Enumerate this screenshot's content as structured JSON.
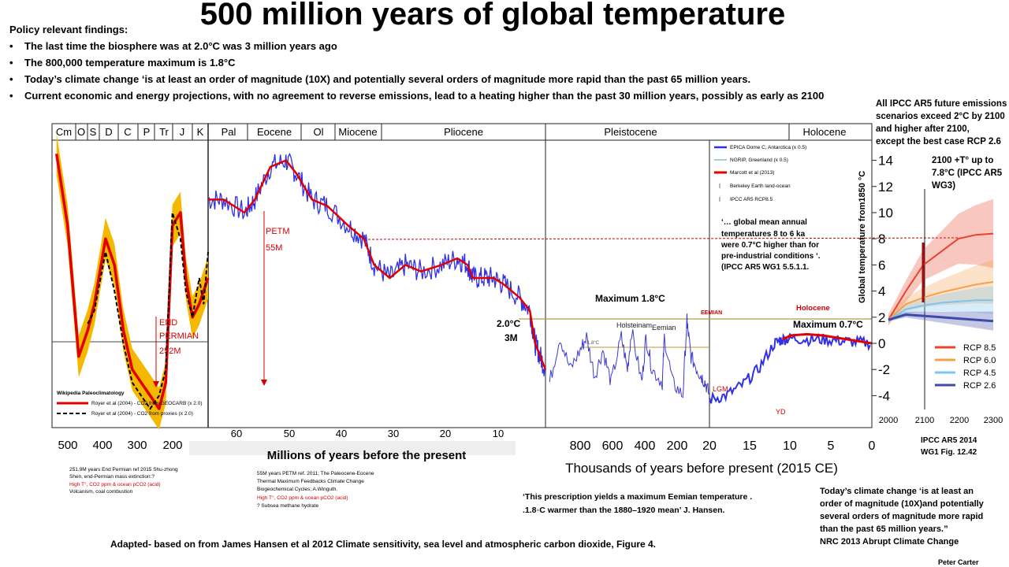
{
  "title": "500 million years of global temperature",
  "policy": {
    "heading": "Policy relevant  findings:",
    "findings": [
      "The last time the biosphere was at 2.0°C was 3 million years ago",
      "The 800,000 temperature maximum is 1.8°C",
      "Today’s climate change ‘is at least an order of magnitude (10X) and potentially several orders  of magnitude more rapid than the past 65 million years.",
      "Current economic and energy projections, with no agreement to reverse emissions, lead to a heating higher than the past 30 million years, possibly as early as 2100"
    ]
  },
  "right_note": {
    "lines": [
      "All IPCC AR5 future emissions",
      "scenarios   exceed 2°C by 2100",
      "and higher after 2100,",
      "except the best case RCP 2.6"
    ]
  },
  "projection_note": {
    "lines": [
      "2100 +T°  up to",
      "7.8°C (IPCC AR5",
      "WG3)"
    ]
  },
  "colors": {
    "hansen_blue": "#3030e6",
    "red": "#e00000",
    "gold": "#f5b800",
    "olive": "#b89a3a",
    "rcp85": "#e8442a",
    "rcp60": "#f4a04a",
    "rcp45": "#7cc4ee",
    "rcp26": "#3c4aa8"
  },
  "chart_data": [
    {
      "type": "line",
      "title": "",
      "ylabel": "Global temperature from1850 °C",
      "ylim": [
        -5,
        15
      ],
      "yticks": [
        "14",
        "12",
        "10",
        "8",
        "6",
        "4",
        "2",
        "0",
        "-2",
        "-4"
      ],
      "periods": [
        "Cm",
        "O",
        "S",
        "D",
        "C",
        "P",
        "Tr",
        "J",
        "K",
        "Pal",
        "Eocene",
        "Ol",
        "Miocene",
        "Pliocene",
        "Pleistocene",
        "Holocene"
      ],
      "panels": [
        {
          "name": "Paleozoic-Mesozoic",
          "x_ticks": [
            "500",
            "400",
            "300",
            "200"
          ],
          "xlim_ma": [
            540,
            190
          ],
          "series": [
            {
              "name": "Royer et al (2004) - CO2 from GEOCARB (x 2.0)",
              "x": [
                530,
                505,
                480,
                460,
                445,
                420,
                400,
                380,
                360,
                340,
                320,
                300,
                285,
                270,
                252,
                240,
                225,
                210,
                200,
                190
              ],
              "y": [
                14.5,
                9,
                -1,
                1,
                3,
                8,
                6,
                1,
                -2,
                -3,
                -4,
                -5,
                -3,
                9,
                10,
                5,
                2,
                3,
                4,
                5
              ]
            },
            {
              "name": "Royer et al (2004) - CO2 from proxies (x 2.0)",
              "x": [
                460,
                445,
                420,
                400,
                380,
                360,
                340,
                320,
                300,
                285,
                270,
                252,
                240,
                225,
                210,
                200,
                190
              ],
              "y": [
                1.5,
                2.5,
                7,
                4,
                0,
                -3,
                -4,
                -5,
                -4,
                -2,
                10,
                8,
                4,
                2,
                5,
                3,
                7
              ]
            }
          ],
          "annotations": [
            "END",
            "PERMIAN",
            "252M"
          ],
          "source_label": "Wikipedia   Paleoclimatology",
          "xlabel": "Millions of years before the present",
          "footnote": [
            "251.9M years End Permian ref 2015 Shu-zhong",
            "Shen, end-Permian mass extinction:?"
          ],
          "footnote_red": "High T°, CO2 ppm & ocean pCO2  (acid)",
          "footnote_end": "Volcanism, coal combustion"
        },
        {
          "name": "Cenozoic",
          "x_ticks": [
            "60",
            "50",
            "40",
            "30",
            "20",
            "10"
          ],
          "xlim_ma": [
            65,
            0
          ],
          "series": [
            {
              "name": "Hansen et al 2012 (deep ocean proxy)",
              "x": [
                65,
                62,
                58,
                56,
                53,
                50,
                48,
                45,
                42,
                38,
                35,
                33,
                30,
                27,
                24,
                20,
                17,
                15,
                14,
                12,
                10,
                8,
                5,
                3,
                2,
                1,
                0
              ],
              "y": [
                11,
                11,
                10,
                11,
                13.5,
                14,
                13,
                11,
                10.5,
                9,
                8,
                6,
                5,
                6,
                5.5,
                6,
                6.5,
                6,
                5,
                5,
                5,
                4.5,
                3.5,
                2.5,
                0,
                -1,
                -2
              ]
            }
          ],
          "annotations": [
            "PETM",
            "55M",
            "2.0°C",
            "3M"
          ],
          "footnote": [
            "55M years PETM ref. 2011; The Paleocene-Eocene",
            "Thermal Maximum Feedbacks Climate Change",
            "Biogeochemical Cycles; A.Winguth."
          ],
          "footnote_red": "High T°, CO2 ppm & ocean pCO2  (acid)",
          "footnote_end": "? Subsea methane hydrate"
        },
        {
          "name": "Pleistocene-Holocene",
          "x_ticks": [
            "800",
            "600",
            "400",
            "200",
            "20",
            "15",
            "10",
            "5",
            "0"
          ],
          "xlabel": "Thousands of years before present (2015 CE)",
          "legend": [
            "EPICA Dome C, Antarctica (x 0.5)",
            "NGRIP, Greenland (x 0.5)",
            "Marcott et al (2013)",
            "Berkeley Earth land-ocean",
            "IPCC AR5 RCP8.5"
          ],
          "series": [
            {
              "name": "EPICA Dome C, Antarctica (x 0.5)",
              "x": [
                800,
                750,
                700,
                650,
                620,
                580,
                540,
                500,
                450,
                420,
                400,
                350,
                330,
                300,
                250,
                240,
                200,
                150,
                130,
                125,
                110,
                80,
                60,
                40,
                20
              ],
              "y": [
                -3,
                0.5,
                -2,
                -0.5,
                0.5,
                -2.5,
                -0.5,
                -3,
                0.5,
                -2,
                1,
                -3,
                0.5,
                -2,
                -3,
                0.5,
                -3,
                -4,
                1.8,
                1,
                -1,
                -2,
                -2.5,
                -3,
                -4
              ]
            },
            {
              "name": "Marcott et al (2013)",
              "x": [
                11,
                10,
                8,
                6,
                4,
                2,
                0
              ],
              "y": [
                0.3,
                0.6,
                0.7,
                0.6,
                0.4,
                0.2,
                0
              ]
            }
          ],
          "annotations": [
            "Maximum 1.8°C",
            "EEMIAN",
            "Holocene",
            "Maximum 0.7°C",
            "Holsteinam",
            "Eemian",
            "LGM",
            "YD",
            "1.8°C"
          ],
          "quote": [
            "‘… global mean annual",
            "temperatures  8 to 6 ka",
            "were  0.7°C higher than for",
            "pre-industrial conditions ‘.",
            "(IPCC AR5 WG1 5.5.1.1."
          ]
        },
        {
          "name": "IPCC AR5 projections",
          "x_ticks": [
            "2000",
            "2100",
            "2200",
            "2300"
          ],
          "series": [
            {
              "name": "RCP 8.5",
              "x": [
                2000,
                2050,
                2100,
                2150,
                2200,
                2250,
                2300
              ],
              "y": [
                1.8,
                4,
                6,
                7,
                8,
                8.3,
                8.4
              ]
            },
            {
              "name": "RCP 6.0",
              "x": [
                2000,
                2050,
                2100,
                2150,
                2200,
                2250,
                2300
              ],
              "y": [
                1.8,
                3,
                3.5,
                3.9,
                4.2,
                4.5,
                4.7
              ]
            },
            {
              "name": "RCP 4.5",
              "x": [
                2000,
                2050,
                2100,
                2150,
                2200,
                2250,
                2300
              ],
              "y": [
                1.8,
                2.6,
                2.9,
                3.1,
                3.2,
                3.3,
                3.3
              ]
            },
            {
              "name": "RCP 2.6",
              "x": [
                2000,
                2050,
                2100,
                2150,
                2200,
                2250,
                2300
              ],
              "y": [
                1.8,
                2.2,
                2.1,
                2.0,
                1.9,
                1.8,
                1.7
              ]
            }
          ],
          "legend": [
            "RCP 8.5",
            "RCP 6.0",
            "RCP 4.5",
            "RCP 2.6"
          ],
          "source": [
            "IPCC AR5 2014",
            "WG1 Fig. 12.42"
          ]
        }
      ]
    }
  ],
  "bottom": {
    "hansen_quote": [
      "‘This prescription yields a maximum Eemian temperature .",
      ".1.8◦C warmer than the 1880–1920 mean’ J. Hansen."
    ],
    "nrc_quote": [
      "Today’s climate change ‘is at least an",
      "order of magnitude (10X)and  potentially",
      "several orders  of magnitude more rapid",
      "than the past 65 million years.”",
      "NRC 2013 Abrupt Climate Change"
    ],
    "adapted": "Adapted- based on  from James  Hansen et al 2012     Climate sensitivity, sea level and atmospheric carbon dioxide, Figure 4.",
    "author": "Peter Carter"
  }
}
